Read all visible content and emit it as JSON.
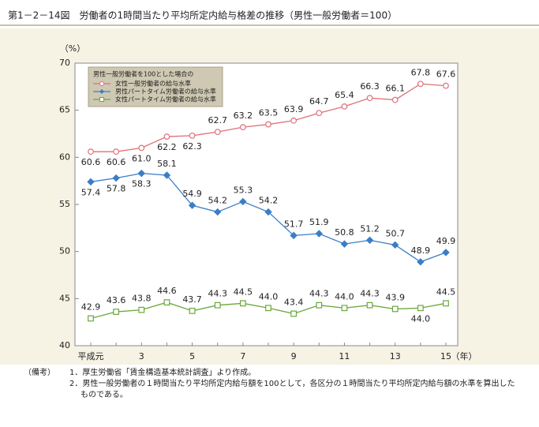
{
  "chart_data": {
    "type": "line",
    "title": "第1－2－14図　労働者の1時間当たり平均所定内給与格差の推移（男性一般労働者＝100）",
    "y_unit": "（%）",
    "x_unit": "（年）",
    "categories": [
      "平成元",
      null,
      "3",
      null,
      "5",
      null,
      "7",
      null,
      "9",
      null,
      "11",
      null,
      "13",
      null,
      "15"
    ],
    "ylim": [
      40,
      70
    ],
    "yticks": [
      40,
      45,
      50,
      55,
      60,
      65,
      70
    ],
    "legend_title": "男性一般労働者を100とした場合の",
    "legend_position": "upper left",
    "series": [
      {
        "name": "女性一般労働者の給与水準",
        "color": "#e07078",
        "marker": "circle",
        "values": [
          60.6,
          60.6,
          61.0,
          62.2,
          62.3,
          62.7,
          63.2,
          63.5,
          63.9,
          64.7,
          65.4,
          66.3,
          66.1,
          67.8,
          67.6
        ],
        "value_labels": [
          "60.6",
          "60.6",
          "61.0",
          "62.2",
          "62.3",
          "62.7",
          "63.2",
          "63.5",
          "63.9",
          "64.7",
          "65.4",
          "66.3",
          "66.1",
          "67.8",
          "67.6"
        ]
      },
      {
        "name": "男性パートタイム労働者の給与水準",
        "color": "#3a7ec6",
        "marker": "diamond",
        "values": [
          57.4,
          57.8,
          58.3,
          58.1,
          54.9,
          54.2,
          55.3,
          54.2,
          51.7,
          51.9,
          50.8,
          51.2,
          50.7,
          48.9,
          49.9
        ],
        "value_labels": [
          "57.4",
          "57.8",
          "58.3",
          "58.1",
          "54.9",
          "54.2",
          "55.3",
          "54.2",
          "51.7",
          "51.9",
          "50.8",
          "51.2",
          "50.7",
          "48.9",
          "49.9"
        ]
      },
      {
        "name": "女性パートタイム労働者の給与水準",
        "color": "#6aa83a",
        "marker": "square",
        "values": [
          42.9,
          43.6,
          43.8,
          44.6,
          43.7,
          44.3,
          44.5,
          44.0,
          43.4,
          44.3,
          44.0,
          44.3,
          43.9,
          44.0,
          44.5
        ],
        "value_labels": [
          "42.9",
          "43.6",
          "43.8",
          "44.6",
          "43.7",
          "44.3",
          "44.5",
          "44.0",
          "43.4",
          "44.3",
          "44.0",
          "44.3",
          "43.9",
          "44.0",
          "44.5"
        ]
      }
    ],
    "notes_label": "（備考）",
    "notes": [
      "1．厚生労働省「賃金構造基本統計調査」より作成。",
      "2．男性一般労働者の１時間当たり平均所定内給与額を100として，各区分の１時間当たり平均所定内給与額の水準を算出したものである。"
    ]
  }
}
